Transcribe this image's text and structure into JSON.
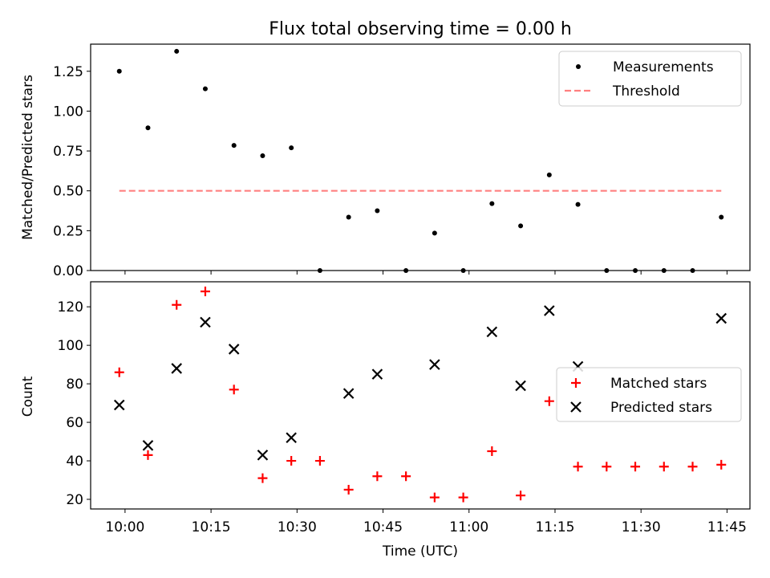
{
  "chart_data": [
    {
      "type": "scatter",
      "title": "Flux total observing time = 0.00 h",
      "ylabel": "Matched/Predicted stars",
      "ylim": [
        0,
        1.42
      ],
      "yticks": [
        "0.00",
        "0.25",
        "0.50",
        "0.75",
        "1.00",
        "1.25"
      ],
      "legend_position": "top-right",
      "series": [
        {
          "name": "Measurements",
          "marker": "dot",
          "color": "#000000",
          "points": [
            [
              "09:59",
              1.25
            ],
            [
              "10:04",
              0.895
            ],
            [
              "10:09",
              1.375
            ],
            [
              "10:14",
              1.14
            ],
            [
              "10:19",
              0.785
            ],
            [
              "10:24",
              0.72
            ],
            [
              "10:29",
              0.77
            ],
            [
              "10:34",
              0.0
            ],
            [
              "10:39",
              0.335
            ],
            [
              "10:44",
              0.375
            ],
            [
              "10:49",
              0.0
            ],
            [
              "10:54",
              0.235
            ],
            [
              "10:59",
              0.0
            ],
            [
              "11:04",
              0.42
            ],
            [
              "11:09",
              0.28
            ],
            [
              "11:14",
              0.6
            ],
            [
              "11:19",
              0.415
            ],
            [
              "11:24",
              0.0
            ],
            [
              "11:29",
              0.0
            ],
            [
              "11:34",
              0.0
            ],
            [
              "11:39",
              0.0
            ],
            [
              "11:44",
              0.335
            ]
          ]
        },
        {
          "name": "Threshold",
          "marker": "dashed-line",
          "color": "#ff8080",
          "points": [
            [
              "09:59",
              0.5
            ],
            [
              "11:44",
              0.5
            ]
          ]
        }
      ]
    },
    {
      "type": "scatter",
      "xlabel": "Time (UTC)",
      "ylabel": "Count",
      "ylim": [
        15,
        133
      ],
      "yticks": [
        "20",
        "40",
        "60",
        "80",
        "100",
        "120"
      ],
      "xticks": [
        "10:00",
        "10:15",
        "10:30",
        "10:45",
        "11:00",
        "11:15",
        "11:30",
        "11:45"
      ],
      "xlim": [
        "09:54",
        "11:49"
      ],
      "legend_position": "center-right",
      "series": [
        {
          "name": "Matched stars",
          "marker": "plus",
          "color": "#ff0000",
          "points": [
            [
              "09:59",
              86
            ],
            [
              "10:04",
              43
            ],
            [
              "10:09",
              121
            ],
            [
              "10:14",
              128
            ],
            [
              "10:19",
              77
            ],
            [
              "10:24",
              31
            ],
            [
              "10:29",
              40
            ],
            [
              "10:34",
              40
            ],
            [
              "10:39",
              25
            ],
            [
              "10:44",
              32
            ],
            [
              "10:49",
              32
            ],
            [
              "10:54",
              21
            ],
            [
              "10:59",
              21
            ],
            [
              "11:04",
              45
            ],
            [
              "11:09",
              22
            ],
            [
              "11:14",
              71
            ],
            [
              "11:19",
              37
            ],
            [
              "11:24",
              37
            ],
            [
              "11:29",
              37
            ],
            [
              "11:34",
              37
            ],
            [
              "11:39",
              37
            ],
            [
              "11:44",
              38
            ]
          ]
        },
        {
          "name": "Predicted stars",
          "marker": "x",
          "color": "#000000",
          "points": [
            [
              "09:59",
              69
            ],
            [
              "10:04",
              48
            ],
            [
              "10:09",
              88
            ],
            [
              "10:14",
              112
            ],
            [
              "10:19",
              98
            ],
            [
              "10:24",
              43
            ],
            [
              "10:29",
              52
            ],
            [
              "10:39",
              75
            ],
            [
              "10:44",
              85
            ],
            [
              "10:54",
              90
            ],
            [
              "11:04",
              107
            ],
            [
              "11:09",
              79
            ],
            [
              "11:14",
              118
            ],
            [
              "11:19",
              89
            ],
            [
              "11:44",
              114
            ]
          ]
        }
      ]
    }
  ]
}
